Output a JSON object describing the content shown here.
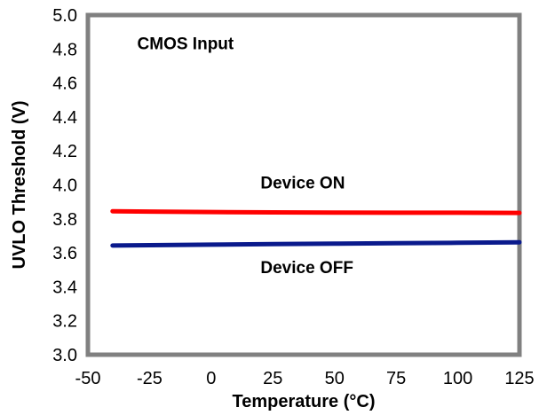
{
  "chart_data": {
    "type": "line",
    "title": "",
    "xlabel": "Temperature (°C)",
    "ylabel": "UVLO Threshold (V)",
    "xlim": [
      -50,
      125
    ],
    "ylim": [
      3.0,
      5.0
    ],
    "x_ticks": [
      "-50",
      "-25",
      "0",
      "25",
      "50",
      "75",
      "100",
      "125"
    ],
    "y_ticks": [
      "3.0",
      "3.2",
      "3.4",
      "3.6",
      "3.8",
      "4.0",
      "4.2",
      "4.4",
      "4.6",
      "4.8",
      "5.0"
    ],
    "grid": false,
    "series": [
      {
        "name": "Device ON",
        "color": "#ff0000",
        "x": [
          -40,
          -25,
          0,
          25,
          50,
          75,
          100,
          125
        ],
        "y": [
          3.845,
          3.843,
          3.84,
          3.838,
          3.837,
          3.836,
          3.836,
          3.835
        ]
      },
      {
        "name": "Device OFF",
        "color": "#0a1a8c",
        "x": [
          -40,
          -25,
          0,
          25,
          50,
          75,
          100,
          125
        ],
        "y": [
          3.643,
          3.645,
          3.648,
          3.651,
          3.654,
          3.657,
          3.659,
          3.662
        ]
      }
    ],
    "annotations": [
      {
        "text": "CMOS Input",
        "x": -30,
        "y": 4.8
      },
      {
        "text": "Device ON",
        "x": 20,
        "y": 3.98
      },
      {
        "text": "Device OFF",
        "x": 20,
        "y": 3.48
      }
    ]
  }
}
